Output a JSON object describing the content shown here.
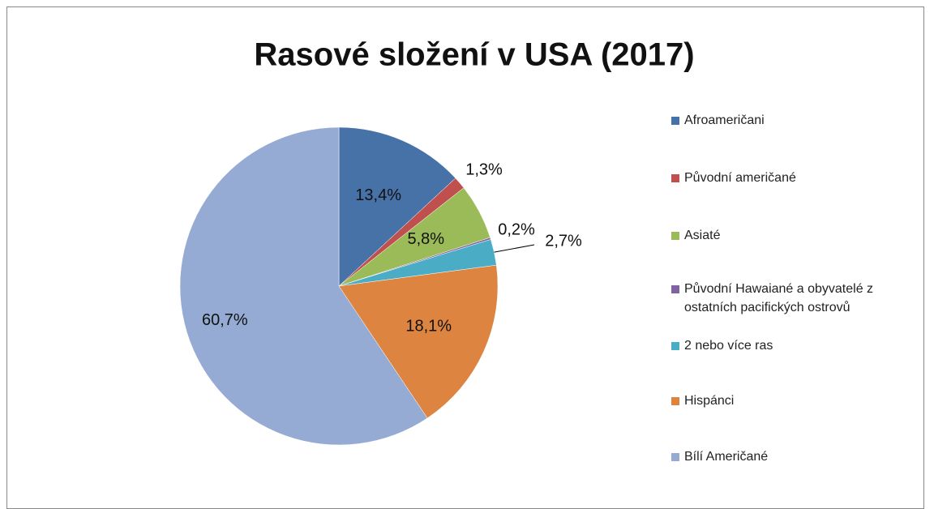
{
  "chart_data": {
    "type": "pie",
    "title": "Rasové složení v USA (2017)",
    "categories": [
      "Afroameričani",
      "Původní američané",
      "Asiaté",
      "Původní Hawaiané a obyvatelé z ostatních pacifických ostrovů",
      "2 nebo více ras",
      "Hispánci",
      "Bílí Američané"
    ],
    "values": [
      13.4,
      1.3,
      5.8,
      0.2,
      2.7,
      18.1,
      60.7
    ],
    "value_labels": [
      "13,4%",
      "1,3%",
      "5,8%",
      "0,2%",
      "2,7%",
      "18,1%",
      "60,7%"
    ],
    "colors": [
      "#4672a8",
      "#c0504d",
      "#9bbb59",
      "#8064a2",
      "#4bacc6",
      "#dd8440",
      "#95abd4"
    ],
    "legend": "right"
  }
}
